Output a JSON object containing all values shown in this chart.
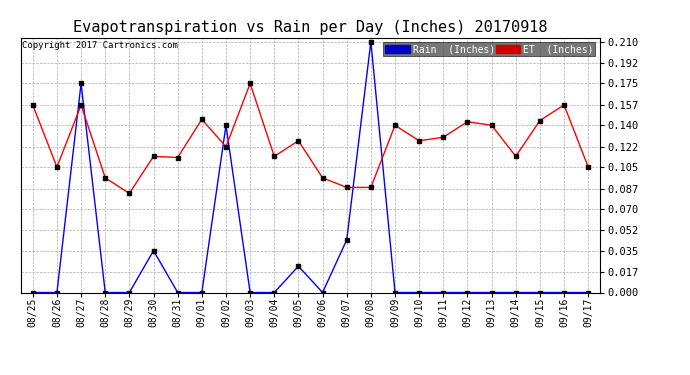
{
  "title": "Evapotranspiration vs Rain per Day (Inches) 20170918",
  "copyright": "Copyright 2017 Cartronics.com",
  "x_labels": [
    "08/25",
    "08/26",
    "08/27",
    "08/28",
    "08/29",
    "08/30",
    "08/31",
    "09/01",
    "09/02",
    "09/03",
    "09/04",
    "09/05",
    "09/06",
    "09/07",
    "09/08",
    "09/09",
    "09/10",
    "09/11",
    "09/12",
    "09/13",
    "09/14",
    "09/15",
    "09/16",
    "09/17"
  ],
  "rain_data": [
    0.0,
    0.0,
    0.175,
    0.0,
    0.0,
    0.035,
    0.0,
    0.0,
    0.14,
    0.0,
    0.0,
    0.022,
    0.0,
    0.044,
    0.21,
    0.0,
    0.0,
    0.0,
    0.0,
    0.0,
    0.0,
    0.0,
    0.0,
    0.0
  ],
  "et_data": [
    0.157,
    0.105,
    0.157,
    0.096,
    0.083,
    0.114,
    0.113,
    0.145,
    0.122,
    0.175,
    0.114,
    0.127,
    0.096,
    0.088,
    0.088,
    0.14,
    0.127,
    0.13,
    0.143,
    0.14,
    0.114,
    0.144,
    0.157,
    0.105
  ],
  "rain_color": "#0000ff",
  "et_color": "#ff0000",
  "marker_color": "#000000",
  "bg_color": "#ffffff",
  "plot_bg_color": "#ffffff",
  "grid_color": "#aaaaaa",
  "ylim": [
    0.0,
    0.2135
  ],
  "yticks": [
    0.0,
    0.017,
    0.035,
    0.052,
    0.07,
    0.087,
    0.105,
    0.122,
    0.14,
    0.157,
    0.175,
    0.192,
    0.21
  ],
  "title_fontsize": 11,
  "legend_rain_bg": "#0000cd",
  "legend_et_bg": "#cc0000"
}
